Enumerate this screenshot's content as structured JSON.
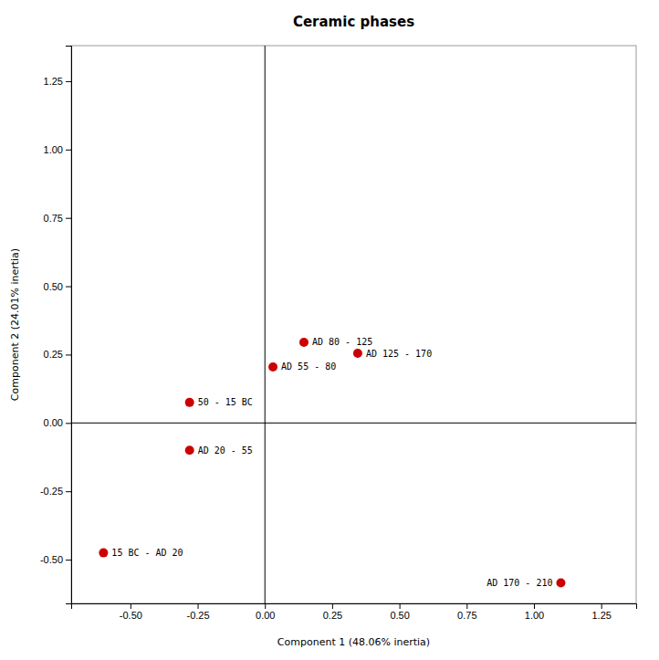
{
  "chart_data": {
    "type": "scatter",
    "title": "Ceramic phases",
    "xlabel": "Component 1 (48.06% inertia)",
    "ylabel": "Component 2 (24.01% inertia)",
    "x": [
      -0.6,
      -0.28,
      -0.28,
      0.03,
      0.145,
      0.345,
      1.1
    ],
    "values": [
      -0.475,
      -0.1,
      0.075,
      0.205,
      0.295,
      0.255,
      -0.585
    ],
    "labels": [
      "15 BC - AD 20",
      "AD 20 - 55",
      "50 - 15 BC",
      "AD 55 - 80",
      "AD 80 - 125",
      "AD 125 - 170",
      "AD 170 - 210"
    ],
    "color": "#cc0000",
    "xlim": [
      -0.72,
      1.38
    ],
    "ylim": [
      -0.66,
      1.38
    ],
    "xticks": [
      {
        "value": -0.5,
        "label": "-0.50"
      },
      {
        "value": -0.25,
        "label": "-0.25"
      },
      {
        "value": 0,
        "label": "0.00"
      },
      {
        "value": 0.25,
        "label": "0.25"
      },
      {
        "value": 0.5,
        "label": "0.50"
      },
      {
        "value": 0.75,
        "label": "0.75"
      },
      {
        "value": 1,
        "label": "1.00"
      },
      {
        "value": 1.25,
        "label": "1.25"
      }
    ],
    "yticks": [
      {
        "value": -0.5,
        "label": "-0.50"
      },
      {
        "value": -0.25,
        "label": "-0.25"
      },
      {
        "value": 0,
        "label": "0.00"
      },
      {
        "value": 0.25,
        "label": "0.25"
      },
      {
        "value": 0.5,
        "label": "0.50"
      },
      {
        "value": 0.75,
        "label": "0.75"
      },
      {
        "value": 1,
        "label": "1.00"
      },
      {
        "value": 1.25,
        "label": "1.25"
      }
    ],
    "grid": false
  }
}
